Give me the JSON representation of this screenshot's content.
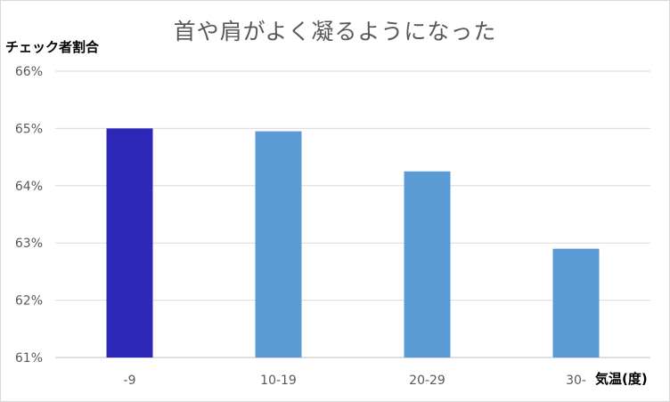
{
  "chart_data": {
    "type": "bar",
    "title": "首や肩がよく凝るようになった",
    "ylabel": "チェック者割合",
    "xlabel": "気温(度)",
    "categories": [
      "-9",
      "10-19",
      "20-29",
      "30-"
    ],
    "values": [
      65.0,
      64.95,
      64.25,
      62.9
    ],
    "ylim": [
      61,
      66
    ],
    "yticks": [
      "61%",
      "62%",
      "63%",
      "64%",
      "65%",
      "66%"
    ],
    "grid": true,
    "colors": [
      "#2e28b8",
      "#5b9bd5",
      "#5b9bd5",
      "#5b9bd5"
    ]
  }
}
